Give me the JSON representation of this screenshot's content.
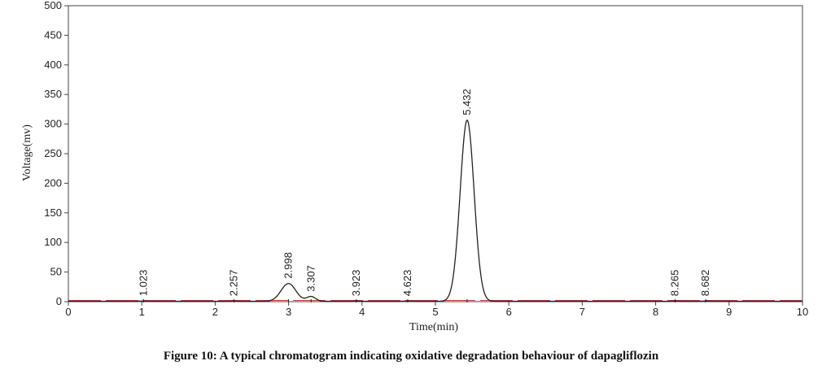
{
  "figure": {
    "caption": "Figure 10: A typical chromatogram indicating oxidative degradation behaviour of dapagliflozin"
  },
  "chart_data": {
    "type": "line",
    "title": "",
    "xlabel": "Time(min)",
    "ylabel": "Voltage(mv)",
    "xlim": [
      0,
      10
    ],
    "ylim": [
      0,
      500
    ],
    "x_ticks": [
      0,
      1,
      2,
      3,
      4,
      5,
      6,
      7,
      8,
      9,
      10
    ],
    "y_ticks": [
      0,
      50,
      100,
      150,
      200,
      250,
      300,
      350,
      400,
      450,
      500
    ],
    "grid": false,
    "colors": {
      "trace": "#222222",
      "baseline": "#d04040",
      "axis": "#444444"
    },
    "peaks": [
      {
        "label": "1.023",
        "time": 1.023,
        "height": 0.5,
        "width": 0.05
      },
      {
        "label": "2.257",
        "time": 2.257,
        "height": 0.5,
        "width": 0.05
      },
      {
        "label": "2.998",
        "time": 2.998,
        "height": 30,
        "width": 0.1
      },
      {
        "label": "3.307",
        "time": 3.307,
        "height": 8,
        "width": 0.06
      },
      {
        "label": "3.923",
        "time": 3.923,
        "height": 0.5,
        "width": 0.05
      },
      {
        "label": "4.623",
        "time": 4.623,
        "height": 0.5,
        "width": 0.05
      },
      {
        "label": "5.432",
        "time": 5.432,
        "height": 306,
        "width": 0.095
      },
      {
        "label": "8.265",
        "time": 8.265,
        "height": 0.5,
        "width": 0.05
      },
      {
        "label": "8.682",
        "time": 8.682,
        "height": 0.5,
        "width": 0.05
      }
    ]
  }
}
